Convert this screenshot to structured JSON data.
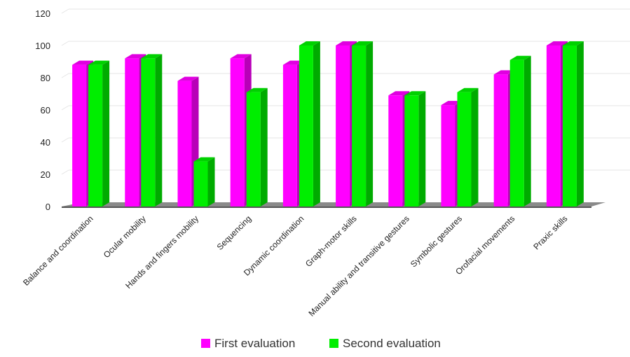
{
  "chart_data": {
    "type": "bar",
    "categories": [
      "Balance and coordination",
      "Ocular mobility",
      "Hands and fingers mobility",
      "Sequencing",
      "Dynamic coordination",
      "Graph-motor skills",
      "Manual ability and transitive gestures",
      "Symbolic gestures",
      "Orofacial movements",
      "Praxic skills"
    ],
    "series": [
      {
        "name": "First evaluation",
        "color": "#ff00ff",
        "values": [
          88,
          92,
          78,
          92,
          88,
          100,
          69,
          63,
          82,
          100
        ]
      },
      {
        "name": "Second evaluation",
        "color": "#00ee00",
        "values": [
          88,
          92,
          28,
          71,
          100,
          100,
          69,
          71,
          91,
          100
        ]
      }
    ],
    "yticks": [
      0,
      20,
      40,
      60,
      80,
      100,
      120
    ],
    "ylim": [
      0,
      120
    ],
    "grid": true,
    "legend_position": "bottom-center",
    "style": "3d-bars"
  }
}
